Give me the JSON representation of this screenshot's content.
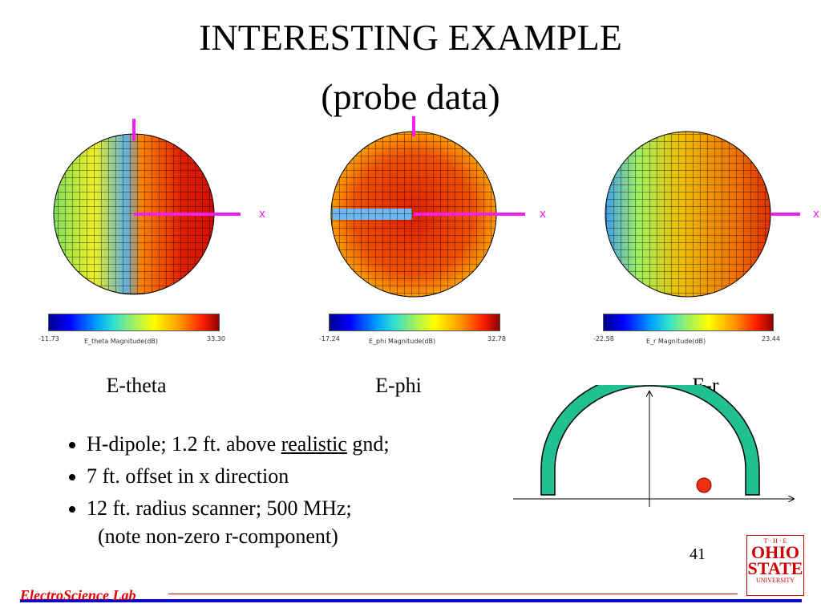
{
  "title": [
    "INTERESTING EXAMPLE",
    "(probe data)"
  ],
  "panels": [
    {
      "axis": "x",
      "colorbar": {
        "min": "-11.73",
        "label": "E_theta Magnitude(dB)",
        "max": "33.30"
      },
      "label": "E-theta"
    },
    {
      "axis": "x",
      "colorbar": {
        "min": "-17.24",
        "label": "E_phi Magnitude(dB)",
        "max": "32.78"
      },
      "label": "E-phi"
    },
    {
      "axis": "x",
      "colorbar": {
        "min": "-22.58",
        "label": "E_r Magnitude(dB)",
        "max": "23.44"
      },
      "label": "E-r"
    }
  ],
  "bullets": [
    [
      "H-dipole;  1.2 ft. above ",
      "realistic",
      " gnd;"
    ],
    [
      "7 ft. offset in x direction"
    ],
    [
      "12 ft. radius scanner; 500 MHz;"
    ]
  ],
  "note": "(note non-zero r-component)",
  "page_number": "41",
  "footer": "ElectroScience Lab",
  "logo": {
    "top": "T · H · E",
    "lines": [
      "OHIO",
      "STATE",
      "UNIVERSITY"
    ]
  }
}
